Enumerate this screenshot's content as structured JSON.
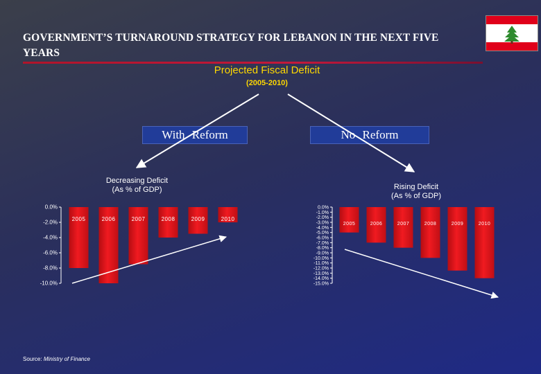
{
  "header": {
    "title": "GOVERNMENT’S TURNAROUND STRATEGY FOR LEBANON IN THE NEXT FIVE\nYEARS",
    "subtitle": "Projected Fiscal Deficit",
    "period": "(2005-2010)",
    "flag_icon": "lebanon-flag-icon"
  },
  "scenarios": {
    "with_reform": "With Reform",
    "no_reform": "No Reform"
  },
  "chart_labels": {
    "decreasing": "Decreasing Deficit\n(As % of GDP)",
    "rising": "Rising Deficit\n(As % of GDP)"
  },
  "footer": {
    "source_label": "Source:",
    "source_value": "Ministry of Finance"
  },
  "colors": {
    "bar": "#e8141c",
    "accent_yellow": "#ffd800",
    "rule": "#c4183a"
  },
  "chart_data": [
    {
      "type": "bar",
      "title": "Decreasing Deficit (As % of GDP)",
      "categories": [
        "2005",
        "2006",
        "2007",
        "2008",
        "2009",
        "2010"
      ],
      "values": [
        -8.0,
        -10.0,
        -7.5,
        -4.0,
        -3.5,
        -2.0
      ],
      "ylim": [
        -10,
        0
      ],
      "yticks": [
        "0.0%",
        "-2.0%",
        "-4.0%",
        "-6.0%",
        "-8.0%",
        "-10.0%"
      ],
      "ytick_values": [
        0,
        -2,
        -4,
        -6,
        -8,
        -10
      ],
      "grid": false,
      "trend": "decreasing"
    },
    {
      "type": "bar",
      "title": "Rising Deficit (As % of GDP)",
      "categories": [
        "2005",
        "2006",
        "2007",
        "2008",
        "2009",
        "2010"
      ],
      "values": [
        -5.0,
        -7.0,
        -8.0,
        -10.0,
        -12.5,
        -14.0
      ],
      "ylim": [
        -15,
        0
      ],
      "yticks": [
        "0.0%",
        "-1.0%",
        "-2.0%",
        "-3.0%",
        "-4.0%",
        "-5.0%",
        "-6.0%",
        "-7.0%",
        "-8.0%",
        "-9.0%",
        "-10.0%",
        "-11.0%",
        "-12.0%",
        "-13.0%",
        "-14.0%",
        "-15.0%"
      ],
      "ytick_values": [
        0,
        -1,
        -2,
        -3,
        -4,
        -5,
        -6,
        -7,
        -8,
        -9,
        -10,
        -11,
        -12,
        -13,
        -14,
        -15
      ],
      "grid": false,
      "trend": "rising"
    }
  ]
}
